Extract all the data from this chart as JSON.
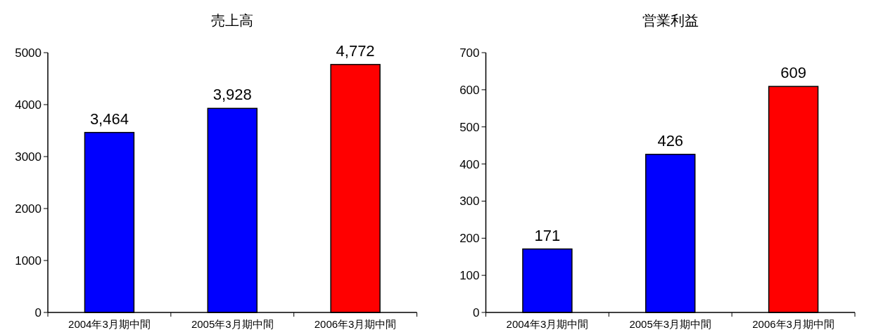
{
  "chart_data": [
    {
      "type": "bar",
      "title": "売上高",
      "categories": [
        "2004年3月期中間",
        "2005年3月期中間",
        "2006年3月期中間"
      ],
      "values": [
        3464,
        3928,
        4772
      ],
      "colors": [
        "#0000ff",
        "#0000ff",
        "#ff0000"
      ],
      "value_labels": [
        "3,464",
        "3,928",
        "4,772"
      ],
      "ylim": [
        0,
        5000
      ],
      "yticks": [
        0,
        1000,
        2000,
        3000,
        4000,
        5000
      ]
    },
    {
      "type": "bar",
      "title": "営業利益",
      "categories": [
        "2004年3月期中間",
        "2005年3月期中間",
        "2006年3月期中間"
      ],
      "values": [
        171,
        426,
        609
      ],
      "colors": [
        "#0000ff",
        "#0000ff",
        "#ff0000"
      ],
      "value_labels": [
        "171",
        "426",
        "609"
      ],
      "ylim": [
        0,
        700
      ],
      "yticks": [
        0,
        100,
        200,
        300,
        400,
        500,
        600,
        700
      ]
    }
  ]
}
